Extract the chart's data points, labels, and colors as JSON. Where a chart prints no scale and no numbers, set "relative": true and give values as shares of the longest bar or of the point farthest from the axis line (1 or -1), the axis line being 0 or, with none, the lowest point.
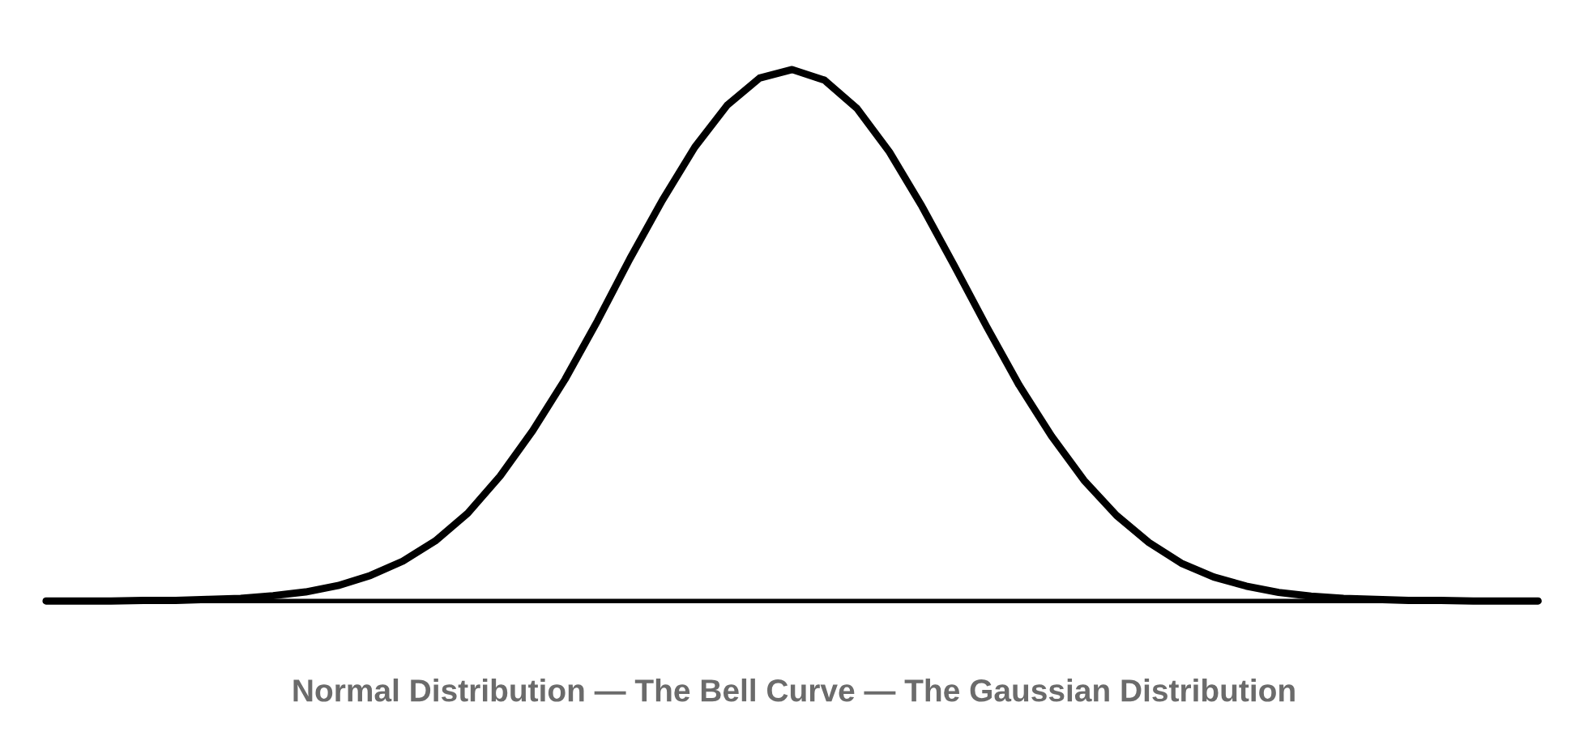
{
  "chart_data": {
    "type": "line",
    "relative": true,
    "color": "#000000",
    "marker": "none",
    "line_style": "solid",
    "categories": [
      null,
      null,
      null,
      null,
      null,
      null,
      null,
      null,
      null,
      null,
      null,
      null,
      null,
      null,
      null,
      null,
      null,
      null,
      null,
      null,
      null,
      null,
      null,
      null,
      null,
      null,
      null,
      null,
      null,
      null,
      null,
      null,
      null,
      null,
      null,
      null,
      null,
      null,
      null,
      null,
      null,
      null,
      null,
      null,
      null,
      null,
      null
    ],
    "values": [
      0.0,
      0.0,
      0.0,
      0.001,
      0.001,
      0.003,
      0.005,
      0.01,
      0.017,
      0.029,
      0.048,
      0.075,
      0.113,
      0.165,
      0.235,
      0.32,
      0.417,
      0.527,
      0.644,
      0.754,
      0.854,
      0.933,
      0.984,
      1.0,
      0.98,
      0.927,
      0.845,
      0.743,
      0.631,
      0.516,
      0.406,
      0.31,
      0.227,
      0.161,
      0.11,
      0.071,
      0.045,
      0.028,
      0.016,
      0.009,
      0.005,
      0.003,
      0.001,
      0.001,
      0.0,
      0.0,
      0.0
    ],
    "annotations": [
      "Normal Distribution — The Bell Curve — The Gaussian Distribution"
    ]
  }
}
